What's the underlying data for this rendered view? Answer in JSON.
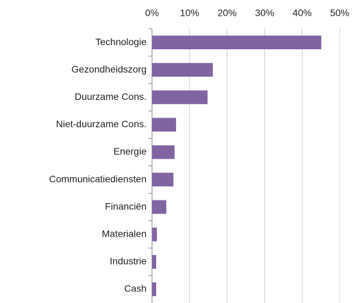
{
  "chart_data": {
    "type": "bar",
    "orientation": "horizontal",
    "categories": [
      "Technologie",
      "Gezondheidszorg",
      "Duurzame Cons.",
      "Niet-duurzame Cons.",
      "Energie",
      "Communicatiediensten",
      "Financiën",
      "Materialen",
      "Industrie",
      "Cash"
    ],
    "values": [
      45.1,
      16.2,
      14.8,
      6.4,
      6.0,
      5.7,
      3.8,
      1.3,
      1.1,
      1.1
    ],
    "color": "#8064a2",
    "xlim": [
      0,
      50
    ],
    "xticks": [
      {
        "value": 0,
        "label": "0%"
      },
      {
        "value": 10,
        "label": "10%"
      },
      {
        "value": 20,
        "label": "20%"
      },
      {
        "value": 30,
        "label": "30%"
      },
      {
        "value": 40,
        "label": "40%"
      },
      {
        "value": 50,
        "label": "50%"
      }
    ],
    "grid": true
  }
}
